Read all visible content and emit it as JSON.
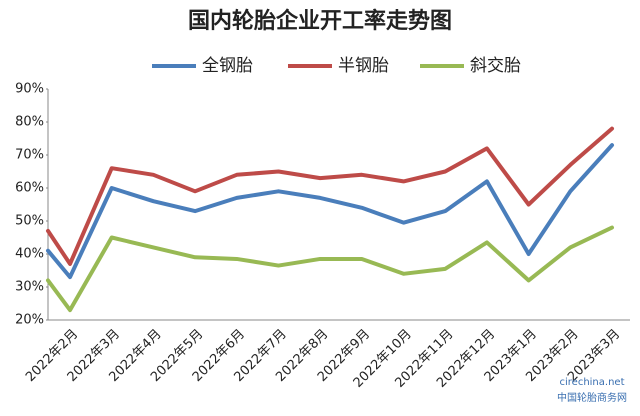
{
  "chart_data": {
    "type": "line",
    "title": "国内轮胎企业开工率走势图",
    "categories": [
      null,
      "2022年2月",
      "2022年3月",
      "2022年4月",
      "2022年5月",
      "2022年6月",
      "2022年7月",
      "2022年8月",
      "2022年9月",
      "2022年10月",
      "2022年11月",
      "2022年12月",
      "2023年1月",
      "2023年2月",
      "2023年3月"
    ],
    "series": [
      {
        "name": "全钢胎",
        "color": "#4a7ebb",
        "values": [
          41,
          33,
          60,
          56,
          53,
          57,
          59,
          57,
          54,
          49.5,
          53,
          62,
          40,
          59,
          73
        ]
      },
      {
        "name": "半钢胎",
        "color": "#be4b48",
        "values": [
          47,
          37,
          66,
          64,
          59,
          64,
          65,
          63,
          64,
          62,
          65,
          72,
          55,
          67,
          78
        ]
      },
      {
        "name": "斜交胎",
        "color": "#98b954",
        "values": [
          32,
          23,
          45,
          42,
          39,
          38.5,
          36.5,
          38.5,
          38.5,
          34,
          35.5,
          43.5,
          32,
          42,
          48
        ]
      }
    ],
    "ylim": [
      20,
      90
    ],
    "yticks": [
      {
        "value": 20,
        "label": "20%"
      },
      {
        "value": 30,
        "label": "30%"
      },
      {
        "value": 40,
        "label": "40%"
      },
      {
        "value": 50,
        "label": "50%"
      },
      {
        "value": 60,
        "label": "60%"
      },
      {
        "value": 70,
        "label": "70%"
      },
      {
        "value": 80,
        "label": "80%"
      },
      {
        "value": 90,
        "label": "90%"
      }
    ],
    "legend": "top",
    "watermark": [
      "cirechina.net",
      "中国轮胎商务网"
    ]
  }
}
